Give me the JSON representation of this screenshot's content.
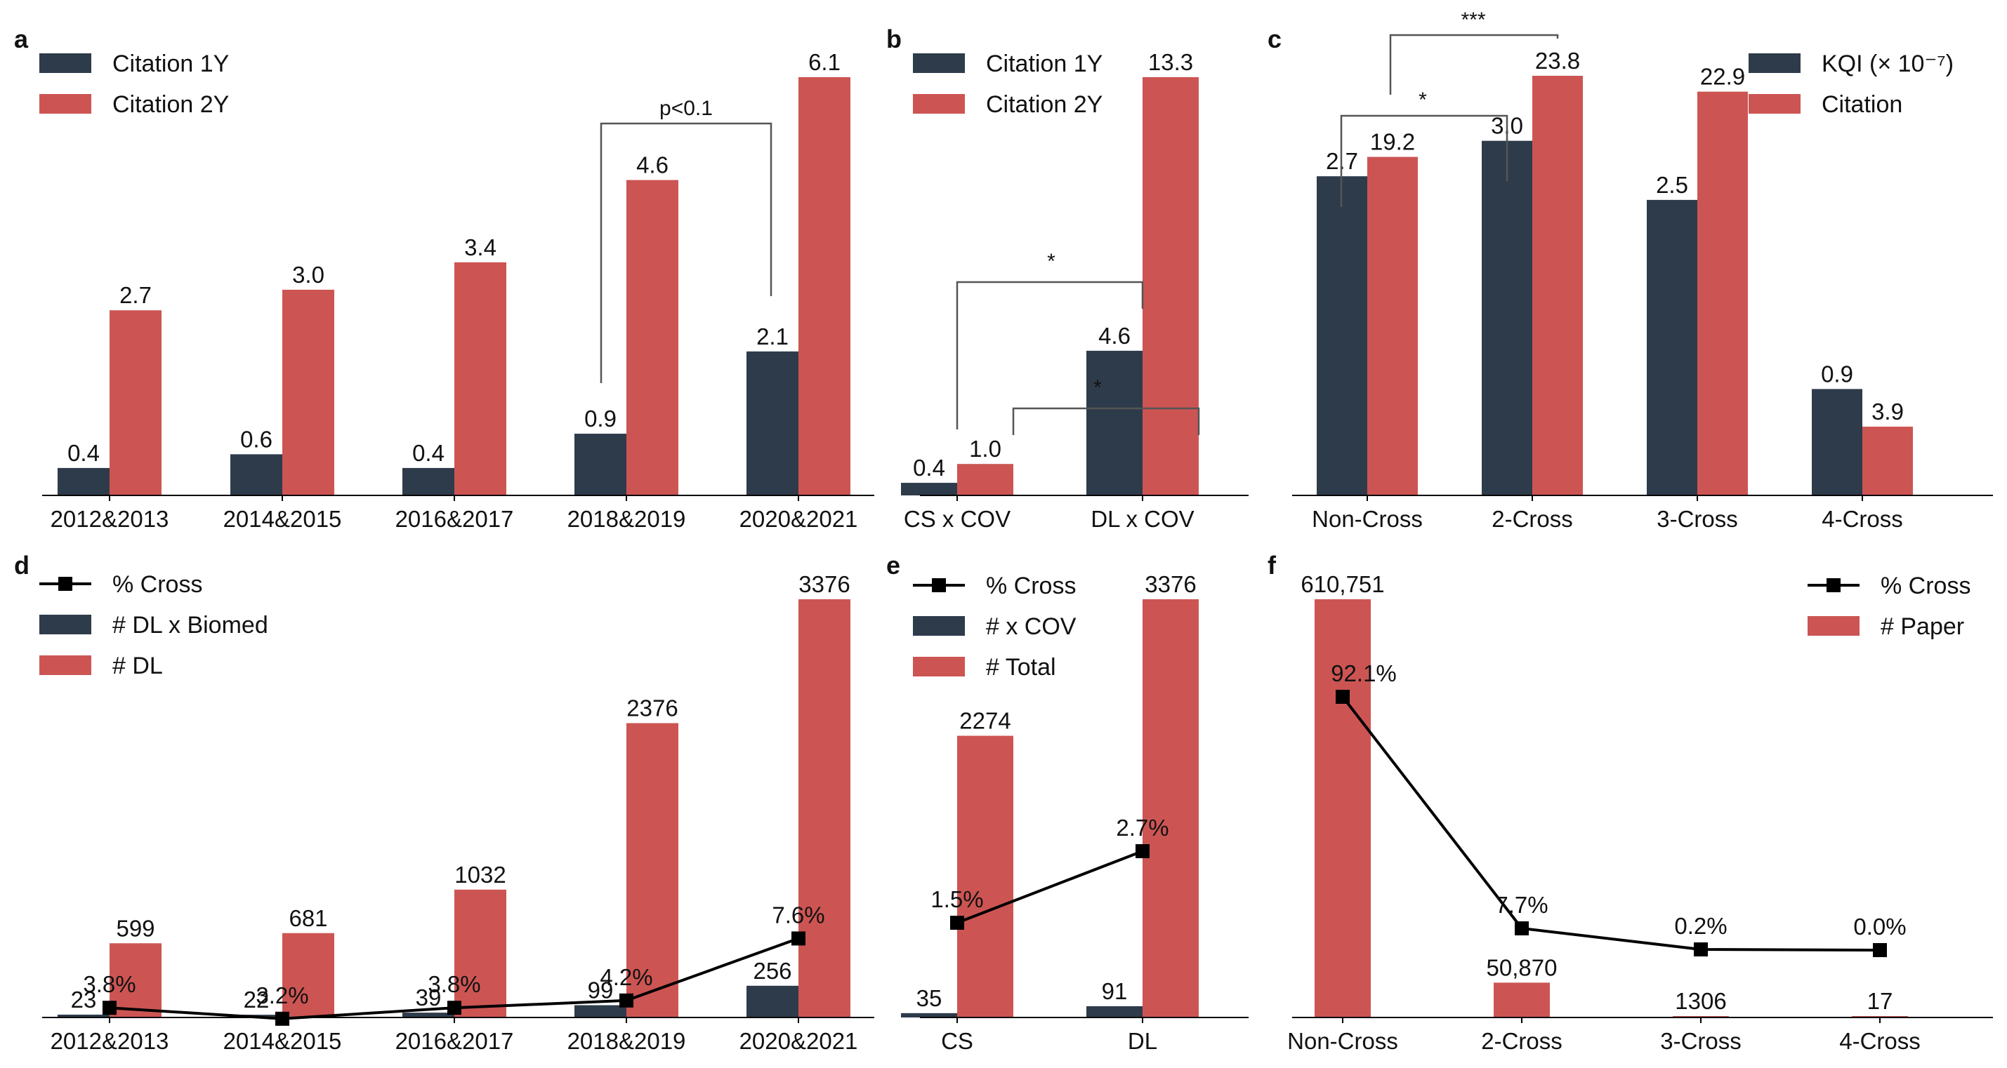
{
  "colors": {
    "dark": "#2e3b4b",
    "red": "#cc5553",
    "line": "#000000",
    "bracket": "#555555",
    "axis": "#000000"
  },
  "chart_data": [
    {
      "id": "a",
      "type": "bar",
      "panel_label": "a",
      "categories": [
        "2012&2013",
        "2014&2015",
        "2016&2017",
        "2018&2019",
        "2020&2021"
      ],
      "series": [
        {
          "name": "Citation 1Y",
          "color": "dark",
          "values": [
            0.4,
            0.6,
            0.4,
            0.9,
            2.1
          ],
          "labels": [
            "0.4",
            "0.6",
            "0.4",
            "0.9",
            "2.1"
          ]
        },
        {
          "name": "Citation 2Y",
          "color": "red",
          "values": [
            2.7,
            3.0,
            3.4,
            4.6,
            6.1
          ],
          "labels": [
            "2.7",
            "3.0",
            "3.4",
            "4.6",
            "6.1"
          ]
        }
      ],
      "legend": [
        {
          "label": "Citation 1Y",
          "color": "dark",
          "kind": "box"
        },
        {
          "label": "Citation 2Y",
          "color": "red",
          "kind": "box"
        }
      ],
      "ylim": [
        0,
        6.1
      ],
      "annotations": [
        {
          "text": "p<0.1",
          "from": [
            3,
            0
          ],
          "to": [
            4,
            0
          ]
        }
      ]
    },
    {
      "id": "b",
      "type": "bar",
      "panel_label": "b",
      "categories": [
        "CS x COV",
        "DL x COV"
      ],
      "series": [
        {
          "name": "Citation 1Y",
          "color": "dark",
          "values": [
            0.4,
            4.6
          ],
          "labels": [
            "0.4",
            "4.6"
          ]
        },
        {
          "name": "Citation 2Y",
          "color": "red",
          "values": [
            1.0,
            13.3
          ],
          "labels": [
            "1.0",
            "13.3"
          ]
        }
      ],
      "legend": [
        {
          "label": "Citation 1Y",
          "color": "dark",
          "kind": "box"
        },
        {
          "label": "Citation 2Y",
          "color": "red",
          "kind": "box"
        }
      ],
      "ylim": [
        0,
        13.3
      ],
      "annotations": [
        {
          "text": "*",
          "from": [
            0,
            0
          ],
          "to": [
            1,
            0
          ]
        },
        {
          "text": "*",
          "from": [
            0,
            1
          ],
          "to": [
            1,
            1
          ]
        }
      ]
    },
    {
      "id": "c",
      "type": "bar",
      "panel_label": "c",
      "categories": [
        "Non-Cross",
        "2-Cross",
        "3-Cross",
        "4-Cross"
      ],
      "series": [
        {
          "name": "KQI",
          "color": "dark",
          "values": [
            2.7,
            3.0,
            2.5,
            0.9
          ],
          "labels": [
            "2.7",
            "3.0",
            "2.5",
            "0.9"
          ],
          "ylim": [
            0,
            3.55
          ]
        },
        {
          "name": "Citation",
          "color": "red",
          "values": [
            19.2,
            23.8,
            22.9,
            3.9
          ],
          "labels": [
            "19.2",
            "23.8",
            "22.9",
            "3.9"
          ],
          "ylim": [
            0,
            23.8
          ]
        }
      ],
      "legend": [
        {
          "label": "KQI (× 10⁻⁷)",
          "color": "dark",
          "kind": "box"
        },
        {
          "label": "Citation",
          "color": "red",
          "kind": "box"
        }
      ],
      "annotations": [
        {
          "text": "*",
          "from": [
            0,
            0
          ],
          "to": [
            1,
            0
          ]
        },
        {
          "text": "***",
          "from": [
            0,
            1
          ],
          "to": [
            1,
            1
          ]
        }
      ]
    },
    {
      "id": "d",
      "type": "bar",
      "panel_label": "d",
      "categories": [
        "2012&2013",
        "2014&2015",
        "2016&2017",
        "2018&2019",
        "2020&2021"
      ],
      "series": [
        {
          "name": "# DL x Biomed",
          "color": "dark",
          "values": [
            23,
            22,
            39,
            99,
            256
          ],
          "labels": [
            "23",
            "22",
            "39",
            "99",
            "256"
          ]
        },
        {
          "name": "# DL",
          "color": "red",
          "values": [
            599,
            681,
            1032,
            2376,
            3376
          ],
          "labels": [
            "599",
            "681",
            "1032",
            "2376",
            "3376"
          ]
        }
      ],
      "ylim": [
        0,
        3376
      ],
      "line": {
        "name": "% Cross",
        "values": [
          3.8,
          3.2,
          3.8,
          4.2,
          7.6
        ],
        "labels": [
          "3.8%",
          "3.2%",
          "3.8%",
          "4.2%",
          "7.6%"
        ]
      },
      "legend": [
        {
          "label": "% Cross",
          "color": "line",
          "kind": "line"
        },
        {
          "label": "# DL x Biomed",
          "color": "dark",
          "kind": "box"
        },
        {
          "label": "# DL",
          "color": "red",
          "kind": "box"
        }
      ]
    },
    {
      "id": "e",
      "type": "bar",
      "panel_label": "e",
      "categories": [
        "CS",
        "DL"
      ],
      "series": [
        {
          "name": "# x COV",
          "color": "dark",
          "values": [
            35,
            91
          ],
          "labels": [
            "35",
            "91"
          ]
        },
        {
          "name": "# Total",
          "color": "red",
          "values": [
            2274,
            3376
          ],
          "labels": [
            "2274",
            "3376"
          ]
        }
      ],
      "ylim": [
        0,
        3376
      ],
      "line": {
        "name": "% Cross",
        "values": [
          1.5,
          2.7
        ],
        "labels": [
          "1.5%",
          "2.7%"
        ]
      },
      "legend": [
        {
          "label": "% Cross",
          "color": "line",
          "kind": "line"
        },
        {
          "label": "# x COV",
          "color": "dark",
          "kind": "box"
        },
        {
          "label": "# Total",
          "color": "red",
          "kind": "box"
        }
      ]
    },
    {
      "id": "f",
      "type": "bar",
      "panel_label": "f",
      "categories": [
        "Non-Cross",
        "2-Cross",
        "3-Cross",
        "4-Cross"
      ],
      "series": [
        {
          "name": "# Paper",
          "color": "red",
          "values": [
            610751,
            50870,
            1306,
            17
          ],
          "labels": [
            "610,751",
            "50,870",
            "1306",
            "17"
          ]
        }
      ],
      "ylim": [
        0,
        610751
      ],
      "line": {
        "name": "% Cross",
        "values": [
          92.1,
          7.7,
          0.2,
          0.0
        ],
        "labels": [
          "92.1%",
          "7.7%",
          "0.2%",
          "0.0%"
        ]
      },
      "legend": [
        {
          "label": "% Cross",
          "color": "line",
          "kind": "line"
        },
        {
          "label": "# Paper",
          "color": "red",
          "kind": "box"
        }
      ]
    }
  ]
}
